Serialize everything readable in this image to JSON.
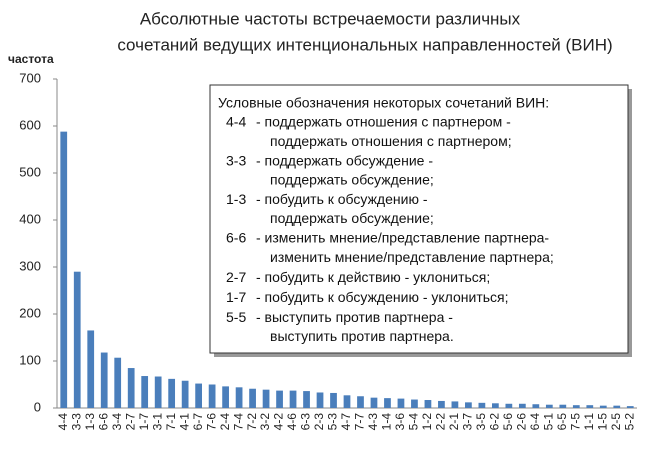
{
  "chart_data": {
    "type": "bar",
    "title": [
      "Абсолютные частоты встречаемости различных",
      "сочетаний ведущих интенциональных направленностей (ВИН)"
    ],
    "y_label": "частота",
    "categories": [
      "4-4",
      "3-3",
      "1-3",
      "6-6",
      "3-4",
      "2-7",
      "1-7",
      "3-1",
      "7-1",
      "4-1",
      "6-7",
      "7-6",
      "2-4",
      "7-4",
      "7-2",
      "3-2",
      "4-2",
      "4-6",
      "6-3",
      "2-3",
      "5-3",
      "4-7",
      "7-7",
      "4-3",
      "1-4",
      "3-6",
      "5-4",
      "1-2",
      "2-2",
      "2-1",
      "3-7",
      "3-5",
      "6-2",
      "5-6",
      "2-6",
      "6-4",
      "5-1",
      "6-5",
      "7-5",
      "1-1",
      "1-5",
      "2-5",
      "5-2"
    ],
    "values": [
      588,
      290,
      165,
      118,
      107,
      85,
      68,
      67,
      62,
      58,
      52,
      50,
      46,
      44,
      41,
      39,
      37,
      37,
      36,
      33,
      32,
      27,
      25,
      22,
      21,
      20,
      18,
      17,
      15,
      14,
      12,
      11,
      10,
      9,
      9,
      8,
      7,
      7,
      6,
      6,
      5,
      5,
      4
    ],
    "color": "#4a7ebb",
    "ylim": [
      0,
      700
    ],
    "yticks": [
      0,
      100,
      200,
      300,
      400,
      500,
      600,
      700
    ],
    "grid": false,
    "annotation": {
      "title": "Условные обозначения некоторых сочетаний ВИН:",
      "items": [
        {
          "code": "4-4",
          "lines": [
            "- поддержать отношения с партнером -",
            "поддержать отношения с партнером;"
          ]
        },
        {
          "code": "3-3",
          "lines": [
            "- поддержать обсуждение -",
            "поддержать обсуждение;"
          ]
        },
        {
          "code": "1-3",
          "lines": [
            "- побудить к обсуждению -",
            "поддержать обсуждение;"
          ]
        },
        {
          "code": "6-6",
          "lines": [
            "- изменить мнение/представление партнера-",
            "изменить мнение/представление партнера;"
          ]
        },
        {
          "code": "2-7",
          "lines": [
            "- побудить к действию - уклониться;"
          ]
        },
        {
          "code": "1-7",
          "lines": [
            "- побудить к обсуждению - уклониться;"
          ]
        },
        {
          "code": "5-5",
          "lines": [
            "- выступить против партнера -",
            "выступить против партнера."
          ]
        }
      ]
    }
  }
}
